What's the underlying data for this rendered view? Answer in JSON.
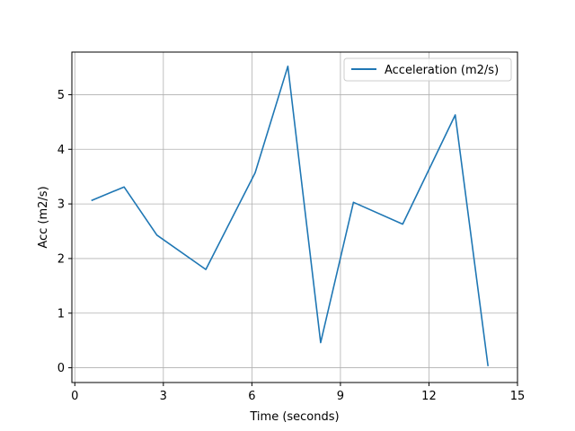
{
  "chart_data": {
    "type": "line",
    "title": "",
    "xlabel": "Time (seconds)",
    "ylabel": "Acc (m2/s)",
    "xlim": [
      -0.1,
      15
    ],
    "ylim": [
      -0.27,
      5.78
    ],
    "xticks": [
      0,
      3,
      6,
      9,
      12,
      15
    ],
    "xtick_labels": [
      "0",
      "3",
      "6",
      "9",
      "12",
      "15"
    ],
    "yticks": [
      0,
      1,
      2,
      3,
      4,
      5
    ],
    "ytick_labels": [
      "0",
      "1",
      "2",
      "3",
      "4",
      "5"
    ],
    "grid": true,
    "legend_position": "top-right",
    "series": [
      {
        "name": "Acceleration (m2/s)",
        "color": "#1f77b4",
        "x": [
          0.56,
          1.67,
          2.78,
          4.44,
          6.11,
          7.22,
          8.33,
          9.44,
          11.11,
          12.89,
          14.0
        ],
        "y": [
          3.06,
          3.31,
          2.43,
          1.8,
          3.57,
          5.52,
          0.46,
          3.03,
          2.63,
          4.63,
          0.03
        ]
      }
    ]
  }
}
